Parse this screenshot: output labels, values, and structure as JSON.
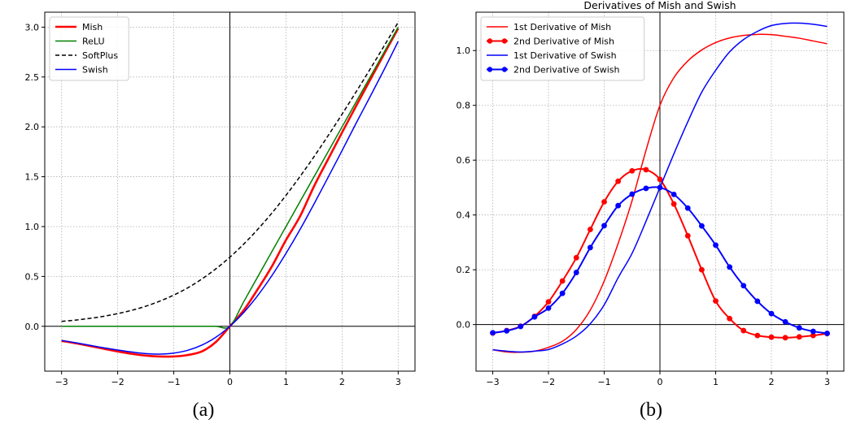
{
  "captions": [
    "(a)",
    "(b)"
  ],
  "chart_data": [
    {
      "type": "line",
      "title": "",
      "xlabel": "",
      "ylabel": "",
      "xlim": [
        -3.3,
        3.3
      ],
      "ylim": [
        -0.45,
        3.15
      ],
      "xticks": [
        -3,
        -2,
        -1,
        0,
        1,
        2,
        3
      ],
      "xtick_labels": [
        "−3",
        "−2",
        "−1",
        "0",
        "1",
        "2",
        "3"
      ],
      "yticks": [
        0,
        0.5,
        1,
        1.5,
        2,
        2.5,
        3
      ],
      "ytick_labels": [
        "0.0",
        "0.5",
        "1.0",
        "1.5",
        "2.0",
        "2.5",
        "3.0"
      ],
      "grid": true,
      "legend_position": "top-left",
      "reference_lines": {
        "x": 0,
        "y": 0
      },
      "x": [
        -3,
        -2.75,
        -2.5,
        -2.25,
        -2,
        -1.75,
        -1.5,
        -1.25,
        -1,
        -0.75,
        -0.5,
        -0.25,
        0,
        0.25,
        0.5,
        0.75,
        1,
        1.25,
        1.5,
        1.75,
        2,
        2.25,
        2.5,
        2.75,
        3
      ],
      "series": [
        {
          "name": "Mish",
          "color": "#ff0000",
          "style": "solid-thick",
          "values": [
            -0.146,
            -0.17,
            -0.197,
            -0.225,
            -0.252,
            -0.276,
            -0.294,
            -0.303,
            -0.303,
            -0.288,
            -0.252,
            -0.158,
            0,
            0.163,
            0.375,
            0.602,
            0.865,
            1.102,
            1.404,
            1.675,
            1.944,
            2.209,
            2.471,
            2.731,
            2.987
          ]
        },
        {
          "name": "ReLU",
          "color": "#008000",
          "style": "solid",
          "values": [
            0,
            0,
            0,
            0,
            0,
            0,
            0,
            0,
            0,
            0,
            0,
            0,
            0,
            0.25,
            0.5,
            0.75,
            1,
            1.25,
            1.5,
            1.75,
            2,
            2.25,
            2.5,
            2.75,
            3
          ]
        },
        {
          "name": "SoftPlus",
          "color": "#000000",
          "style": "dashed",
          "values": [
            0.049,
            0.062,
            0.079,
            0.1,
            0.127,
            0.16,
            0.201,
            0.252,
            0.313,
            0.386,
            0.474,
            0.576,
            0.693,
            0.826,
            0.974,
            1.136,
            1.313,
            1.502,
            1.701,
            1.911,
            2.127,
            2.351,
            2.579,
            2.812,
            3.049
          ]
        },
        {
          "name": "Swish",
          "color": "#0000ff",
          "style": "solid",
          "values": [
            -0.142,
            -0.165,
            -0.19,
            -0.216,
            -0.238,
            -0.258,
            -0.274,
            -0.279,
            -0.269,
            -0.241,
            -0.189,
            -0.11,
            0,
            0.14,
            0.311,
            0.509,
            0.731,
            0.97,
            1.227,
            1.493,
            1.762,
            2.036,
            2.303,
            2.575,
            2.857
          ]
        }
      ]
    },
    {
      "type": "line",
      "title": "Derivatives of Mish and Swish",
      "xlabel": "",
      "ylabel": "",
      "xlim": [
        -3.3,
        3.3
      ],
      "ylim": [
        -0.17,
        1.14
      ],
      "xticks": [
        -3,
        -2,
        -1,
        0,
        1,
        2,
        3
      ],
      "xtick_labels": [
        "−3",
        "−2",
        "−1",
        "0",
        "1",
        "2",
        "3"
      ],
      "yticks": [
        0,
        0.2,
        0.4,
        0.6,
        0.8,
        1.0
      ],
      "ytick_labels": [
        "0.0",
        "0.2",
        "0.4",
        "0.6",
        "0.8",
        "1.0"
      ],
      "grid": true,
      "legend_position": "top-left",
      "reference_lines": {
        "x": 0,
        "y": 0
      },
      "x": [
        -3,
        -2.75,
        -2.5,
        -2.25,
        -2,
        -1.75,
        -1.5,
        -1.25,
        -1,
        -0.75,
        -0.5,
        -0.25,
        0,
        0.25,
        0.5,
        0.75,
        1,
        1.25,
        1.5,
        1.75,
        2,
        2.25,
        2.5,
        2.75,
        3
      ],
      "series": [
        {
          "name": "1st Derivative of Mish",
          "color": "#ff0000",
          "markers": false,
          "values": [
            -0.092,
            -0.1,
            -0.101,
            -0.097,
            -0.083,
            -0.061,
            -0.018,
            0.053,
            0.159,
            0.296,
            0.452,
            0.636,
            0.8,
            0.901,
            0.962,
            1.002,
            1.029,
            1.046,
            1.055,
            1.059,
            1.058,
            1.052,
            1.045,
            1.035,
            1.025
          ]
        },
        {
          "name": "2nd Derivative of Mish",
          "color": "#ff0000",
          "markers": true,
          "values": [
            -0.031,
            -0.022,
            -0.006,
            0.03,
            0.083,
            0.159,
            0.244,
            0.347,
            0.448,
            0.523,
            0.561,
            0.565,
            0.53,
            0.44,
            0.324,
            0.2,
            0.086,
            0.022,
            -0.022,
            -0.04,
            -0.046,
            -0.048,
            -0.045,
            -0.04,
            -0.033
          ]
        },
        {
          "name": "1st Derivative of Swish",
          "color": "#0000ff",
          "markers": false,
          "values": [
            -0.092,
            -0.097,
            -0.1,
            -0.097,
            -0.091,
            -0.071,
            -0.042,
            0.003,
            0.072,
            0.171,
            0.26,
            0.377,
            0.5,
            0.623,
            0.74,
            0.848,
            0.928,
            0.995,
            1.04,
            1.07,
            1.091,
            1.099,
            1.1,
            1.096,
            1.088
          ]
        },
        {
          "name": "2nd Derivative of Swish",
          "color": "#0000ff",
          "markers": true,
          "values": [
            -0.03,
            -0.023,
            -0.007,
            0.028,
            0.06,
            0.114,
            0.19,
            0.281,
            0.361,
            0.434,
            0.476,
            0.497,
            0.5,
            0.475,
            0.425,
            0.36,
            0.29,
            0.21,
            0.142,
            0.085,
            0.04,
            0.01,
            -0.012,
            -0.025,
            -0.032
          ]
        }
      ]
    }
  ]
}
